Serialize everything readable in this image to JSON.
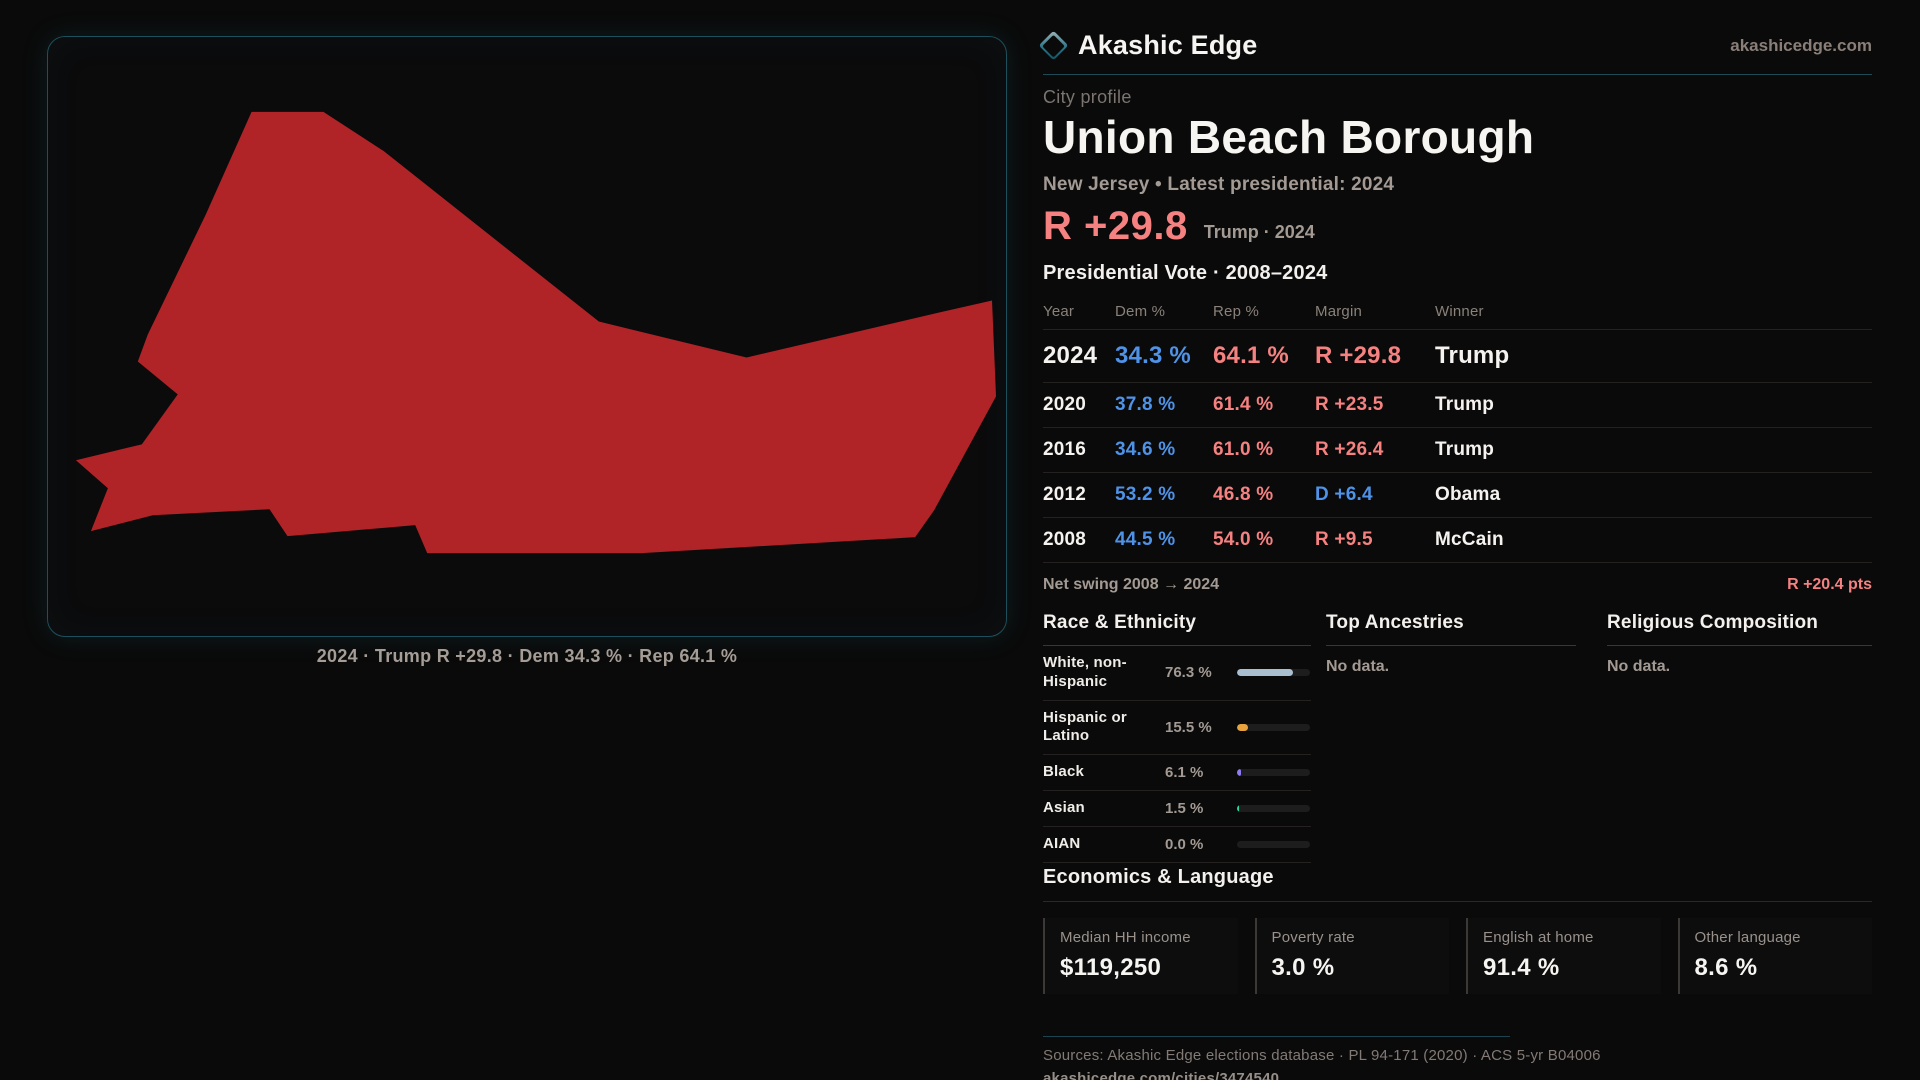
{
  "brand": {
    "name": "Akashic Edge",
    "site": "akashicedge.com"
  },
  "profile": {
    "kicker": "City profile",
    "title": "Union Beach Borough",
    "subtitle": "New Jersey • Latest presidential: 2024"
  },
  "lead": {
    "margin": "R +29.8",
    "note": "Trump · 2024"
  },
  "vote_table": {
    "title": "Presidential Vote · 2008–2024",
    "columns": {
      "year": "Year",
      "dem": "Dem %",
      "rep": "Rep %",
      "margin": "Margin",
      "winner": "Winner"
    },
    "rows": [
      {
        "year": "2024",
        "dem": "34.3 %",
        "rep": "64.1 %",
        "margin": "R +29.8",
        "margin_party": "rep",
        "winner": "Trump"
      },
      {
        "year": "2020",
        "dem": "37.8 %",
        "rep": "61.4 %",
        "margin": "R +23.5",
        "margin_party": "rep",
        "winner": "Trump"
      },
      {
        "year": "2016",
        "dem": "34.6 %",
        "rep": "61.0 %",
        "margin": "R +26.4",
        "margin_party": "rep",
        "winner": "Trump"
      },
      {
        "year": "2012",
        "dem": "53.2 %",
        "rep": "46.8 %",
        "margin": "D +6.4",
        "margin_party": "dem",
        "winner": "Obama"
      },
      {
        "year": "2008",
        "dem": "44.5 %",
        "rep": "54.0 %",
        "margin": "R +9.5",
        "margin_party": "rep",
        "winner": "McCain"
      }
    ],
    "swing_label": "Net swing 2008 → 2024",
    "swing_value": "R +20.4 pts"
  },
  "race": {
    "heading": "Race & Ethnicity",
    "rows": [
      {
        "label": "White, non-Hispanic",
        "value": "76.3 %",
        "pct": 76.3,
        "color": "#a9becf"
      },
      {
        "label": "Hispanic or Latino",
        "value": "15.5 %",
        "pct": 15.5,
        "color": "#e8a33c"
      },
      {
        "label": "Black",
        "value": "6.1 %",
        "pct": 6.1,
        "color": "#8f7cf0"
      },
      {
        "label": "Asian",
        "value": "1.5 %",
        "pct": 1.5,
        "color": "#2fd49a"
      },
      {
        "label": "AIAN",
        "value": "0.0 %",
        "pct": 0,
        "color": "#8f7cf0"
      }
    ]
  },
  "ancestries": {
    "heading": "Top Ancestries",
    "empty": "No data."
  },
  "religion": {
    "heading": "Religious Composition",
    "empty": "No data."
  },
  "economics": {
    "heading": "Economics & Language",
    "cards": [
      {
        "label": "Median HH income",
        "value": "$119,250"
      },
      {
        "label": "Poverty rate",
        "value": "3.0 %"
      },
      {
        "label": "English at home",
        "value": "91.4 %"
      },
      {
        "label": "Other language",
        "value": "8.6 %"
      }
    ]
  },
  "map": {
    "caption": "2024 · Trump  R +29.8 · Dem 34.3 % · Rep 64.1 %",
    "fill": "#b02327"
  },
  "footer": {
    "sources": "Sources: Akashic Edge elections database · PL 94-171 (2020) · ACS 5-yr B04006",
    "url": "akashicedge.com/cities/3474540"
  },
  "colors": {
    "accent_rep": "#f58181",
    "accent_dem": "#4f93e8",
    "teal_border": "#1e4e5a",
    "map_red": "#b02327"
  }
}
